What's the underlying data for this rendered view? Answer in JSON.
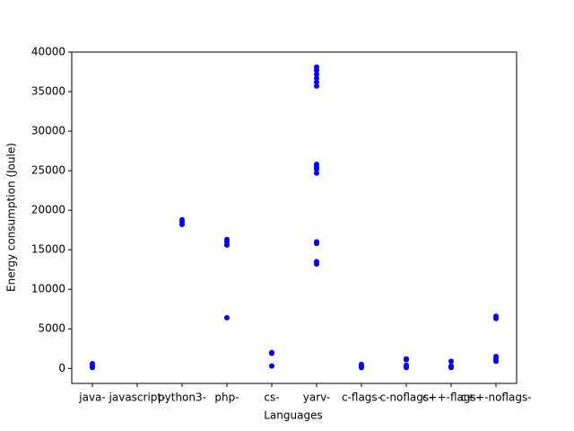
{
  "chart_data": {
    "type": "scatter",
    "xlabel": "Languages",
    "ylabel": "Energy consumption (Joule)",
    "categories": [
      "java-",
      "javascript-",
      "python3-",
      "php-",
      "cs-",
      "yarv-",
      "c-flags-",
      "c-noflags-",
      "c++-flags-",
      "c++-noflags-"
    ],
    "x": [
      "java-",
      "java-",
      "java-",
      "python3-",
      "python3-",
      "python3-",
      "php-",
      "php-",
      "php-",
      "php-",
      "cs-",
      "cs-",
      "cs-",
      "yarv-",
      "yarv-",
      "yarv-",
      "yarv-",
      "yarv-",
      "yarv-",
      "yarv-",
      "yarv-",
      "yarv-",
      "yarv-",
      "yarv-",
      "yarv-",
      "yarv-",
      "yarv-",
      "c-flags-",
      "c-flags-",
      "c-flags-",
      "c-noflags-",
      "c-noflags-",
      "c-noflags-",
      "c-noflags-",
      "c++-flags-",
      "c++-flags-",
      "c++-flags-",
      "c++-noflags-",
      "c++-noflags-",
      "c++-noflags-",
      "c++-noflags-",
      "c++-noflags-"
    ],
    "y": [
      100,
      300,
      600,
      18200,
      18500,
      18800,
      6400,
      15600,
      16000,
      16300,
      300,
      1900,
      2000,
      13200,
      13500,
      15800,
      16000,
      24700,
      25200,
      25500,
      25800,
      35700,
      36200,
      36700,
      37200,
      37700,
      38100,
      100,
      300,
      500,
      100,
      400,
      1100,
      1200,
      100,
      300,
      900,
      900,
      1200,
      1500,
      6300,
      6600
    ],
    "color": "blue",
    "ylim": [
      -1900,
      40000
    ],
    "yticks": [
      0,
      5000,
      10000,
      15000,
      20000,
      25000,
      30000,
      35000,
      40000
    ]
  }
}
